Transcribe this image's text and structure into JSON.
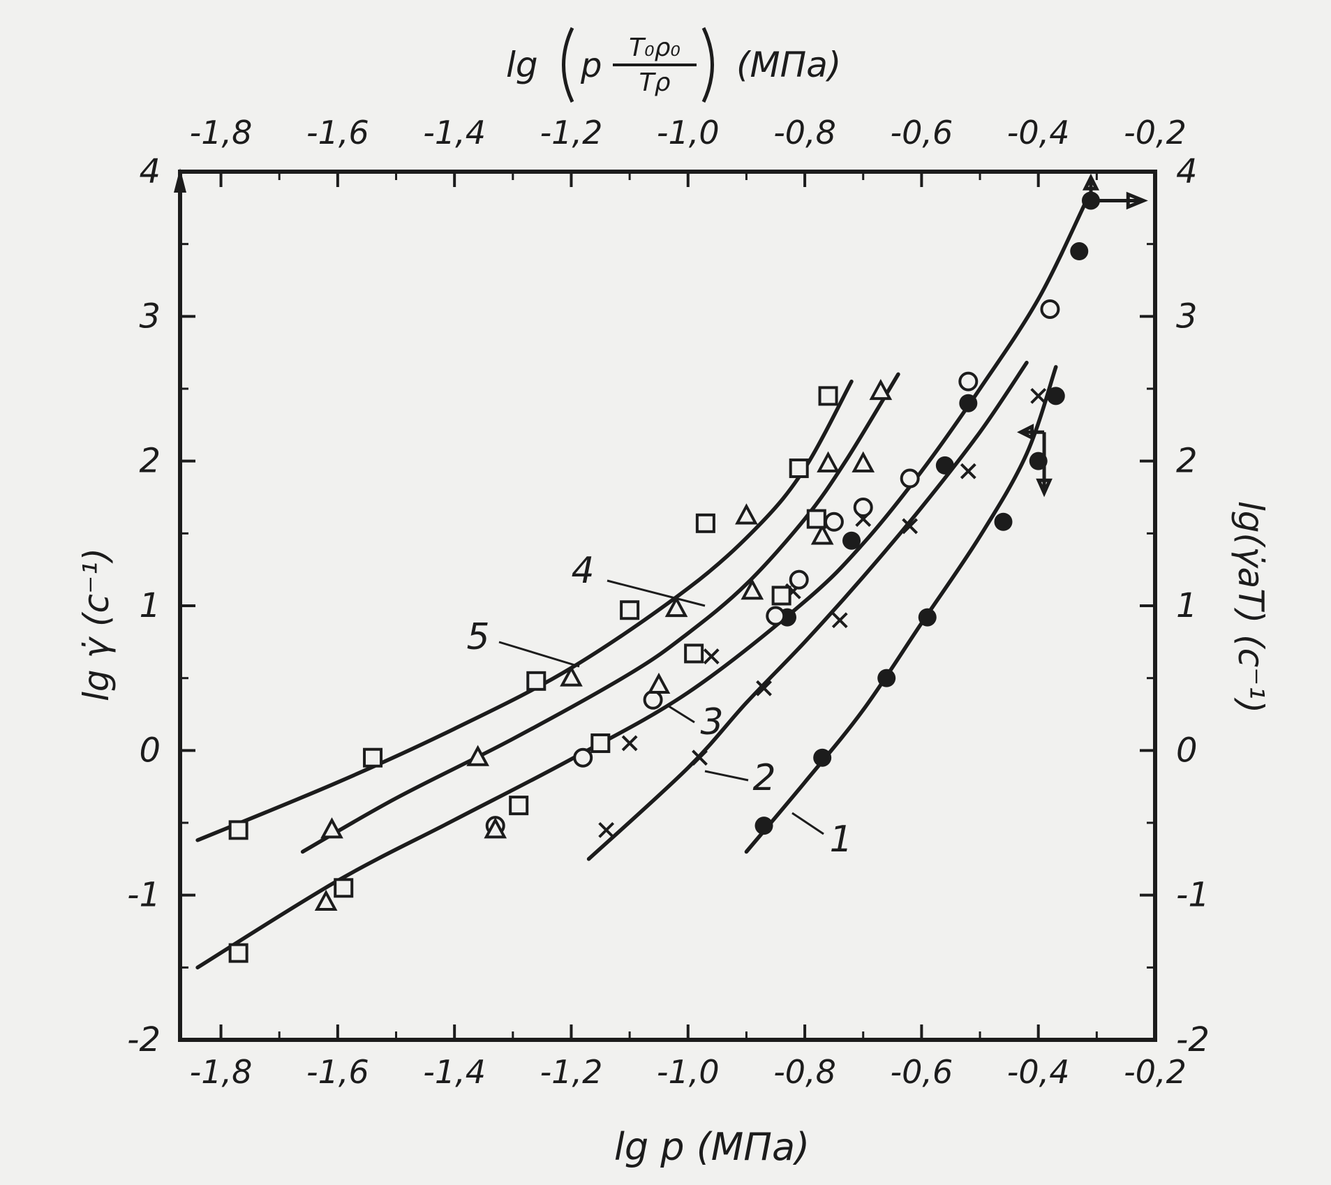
{
  "chart_data": {
    "type": "scatter",
    "xlabel": "lg p (МПа)",
    "x2label": "lg(p T₀ρ₀ / Tρ) (МПа)",
    "x2label_parts": {
      "prefix": "lg",
      "numerator": "T₀ρ₀",
      "denominator": "Tρ",
      "unit": "(МПа)"
    },
    "ylabel": "lg γ̇ (с⁻¹)",
    "y2label": "lg(γ̇aT) (с⁻¹)",
    "xlim": [
      -1.87,
      -0.2
    ],
    "ylim": [
      -2,
      4
    ],
    "grid": false,
    "xticks": [
      -1.8,
      -1.6,
      -1.4,
      -1.2,
      -1.0,
      -0.8,
      -0.6,
      -0.4,
      -0.2
    ],
    "xtick_labels": [
      "-1,8",
      "-1,6",
      "-1,4",
      "-1,2",
      "-1,0",
      "-0,8",
      "-0,6",
      "-0,4",
      "-0,2"
    ],
    "yticks": [
      -2,
      -1,
      0,
      1,
      2,
      3,
      4
    ],
    "ytick_labels": [
      "-2",
      "-1",
      "0",
      "1",
      "2",
      "3",
      "4"
    ],
    "series": [
      {
        "name": "1",
        "marker": "filled-circle",
        "values": [
          [
            -0.87,
            -0.52
          ],
          [
            -0.77,
            -0.05
          ],
          [
            -0.66,
            0.5
          ],
          [
            -0.59,
            0.92
          ],
          [
            -0.46,
            1.58
          ],
          [
            -0.4,
            2.0
          ],
          [
            -0.37,
            2.45
          ],
          [
            -0.56,
            1.97
          ],
          [
            -0.72,
            1.45
          ],
          [
            -0.83,
            0.92
          ],
          [
            -0.52,
            2.4
          ],
          [
            -0.33,
            3.45
          ],
          [
            -0.31,
            3.8
          ]
        ],
        "curve": [
          [
            -0.9,
            -0.7
          ],
          [
            -0.8,
            -0.22
          ],
          [
            -0.7,
            0.28
          ],
          [
            -0.6,
            0.88
          ],
          [
            -0.5,
            1.48
          ],
          [
            -0.42,
            2.05
          ],
          [
            -0.37,
            2.65
          ]
        ]
      },
      {
        "name": "2",
        "marker": "cross",
        "values": [
          [
            -1.14,
            -0.55
          ],
          [
            -0.98,
            -0.05
          ],
          [
            -0.87,
            0.43
          ],
          [
            -0.74,
            0.9
          ],
          [
            -0.62,
            1.55
          ],
          [
            -0.52,
            1.93
          ],
          [
            -0.4,
            2.45
          ],
          [
            -1.1,
            0.05
          ],
          [
            -0.96,
            0.65
          ],
          [
            -0.82,
            1.1
          ],
          [
            -0.7,
            1.6
          ]
        ],
        "curve": [
          [
            -1.17,
            -0.75
          ],
          [
            -1.0,
            -0.12
          ],
          [
            -0.9,
            0.33
          ],
          [
            -0.8,
            0.75
          ],
          [
            -0.7,
            1.2
          ],
          [
            -0.6,
            1.68
          ],
          [
            -0.5,
            2.2
          ],
          [
            -0.42,
            2.68
          ]
        ]
      },
      {
        "name": "3",
        "marker": "open-circle",
        "values": [
          [
            -1.33,
            -0.52
          ],
          [
            -1.18,
            -0.05
          ],
          [
            -1.06,
            0.35
          ],
          [
            -0.85,
            0.93
          ],
          [
            -0.81,
            1.18
          ],
          [
            -0.75,
            1.58
          ],
          [
            -0.7,
            1.68
          ],
          [
            -0.62,
            1.88
          ],
          [
            -0.52,
            2.55
          ],
          [
            -0.38,
            3.05
          ]
        ],
        "curve": [
          [
            -1.84,
            -1.5
          ],
          [
            -1.6,
            -0.9
          ],
          [
            -1.4,
            -0.48
          ],
          [
            -1.2,
            -0.06
          ],
          [
            -1.0,
            0.4
          ],
          [
            -0.8,
            1.03
          ],
          [
            -0.7,
            1.43
          ],
          [
            -0.6,
            1.93
          ],
          [
            -0.5,
            2.5
          ],
          [
            -0.4,
            3.12
          ],
          [
            -0.32,
            3.78
          ]
        ]
      },
      {
        "name": "4",
        "marker": "triangle",
        "values": [
          [
            -1.61,
            -0.55
          ],
          [
            -1.36,
            -0.05
          ],
          [
            -1.2,
            0.5
          ],
          [
            -1.02,
            0.98
          ],
          [
            -0.9,
            1.62
          ],
          [
            -0.76,
            1.98
          ],
          [
            -0.67,
            2.48
          ],
          [
            -0.89,
            1.1
          ],
          [
            -0.77,
            1.48
          ],
          [
            -0.7,
            1.98
          ],
          [
            -1.05,
            0.45
          ],
          [
            -1.62,
            -1.05
          ],
          [
            -1.33,
            -0.55
          ]
        ],
        "curve": [
          [
            -1.66,
            -0.7
          ],
          [
            -1.5,
            -0.33
          ],
          [
            -1.3,
            0.08
          ],
          [
            -1.1,
            0.53
          ],
          [
            -1.0,
            0.81
          ],
          [
            -0.9,
            1.15
          ],
          [
            -0.8,
            1.6
          ],
          [
            -0.73,
            2.0
          ],
          [
            -0.64,
            2.6
          ]
        ]
      },
      {
        "name": "5",
        "marker": "open-square",
        "values": [
          [
            -1.77,
            -0.55
          ],
          [
            -1.54,
            -0.05
          ],
          [
            -1.26,
            0.48
          ],
          [
            -1.1,
            0.97
          ],
          [
            -0.97,
            1.57
          ],
          [
            -0.81,
            1.95
          ],
          [
            -0.76,
            2.45
          ],
          [
            -1.59,
            -0.95
          ],
          [
            -1.29,
            -0.38
          ],
          [
            -1.15,
            0.05
          ],
          [
            -0.99,
            0.67
          ],
          [
            -0.84,
            1.07
          ],
          [
            -0.78,
            1.6
          ],
          [
            -1.77,
            -1.4
          ]
        ],
        "curve": [
          [
            -1.84,
            -0.62
          ],
          [
            -1.6,
            -0.22
          ],
          [
            -1.4,
            0.15
          ],
          [
            -1.2,
            0.57
          ],
          [
            -1.0,
            1.12
          ],
          [
            -0.88,
            1.55
          ],
          [
            -0.8,
            1.95
          ],
          [
            -0.72,
            2.55
          ]
        ]
      }
    ],
    "labels": [
      "1",
      "2",
      "3",
      "4",
      "5"
    ],
    "top_axis_ticks": [
      "-1,8",
      "-1,6",
      "-1,4",
      "-1,2",
      "-1,0",
      "-0,8",
      "-0,6",
      "-0,4",
      "-0,2"
    ],
    "right_axis_ticks": [
      "-2",
      "-1",
      "0",
      "1",
      "2",
      "3",
      "4"
    ]
  }
}
